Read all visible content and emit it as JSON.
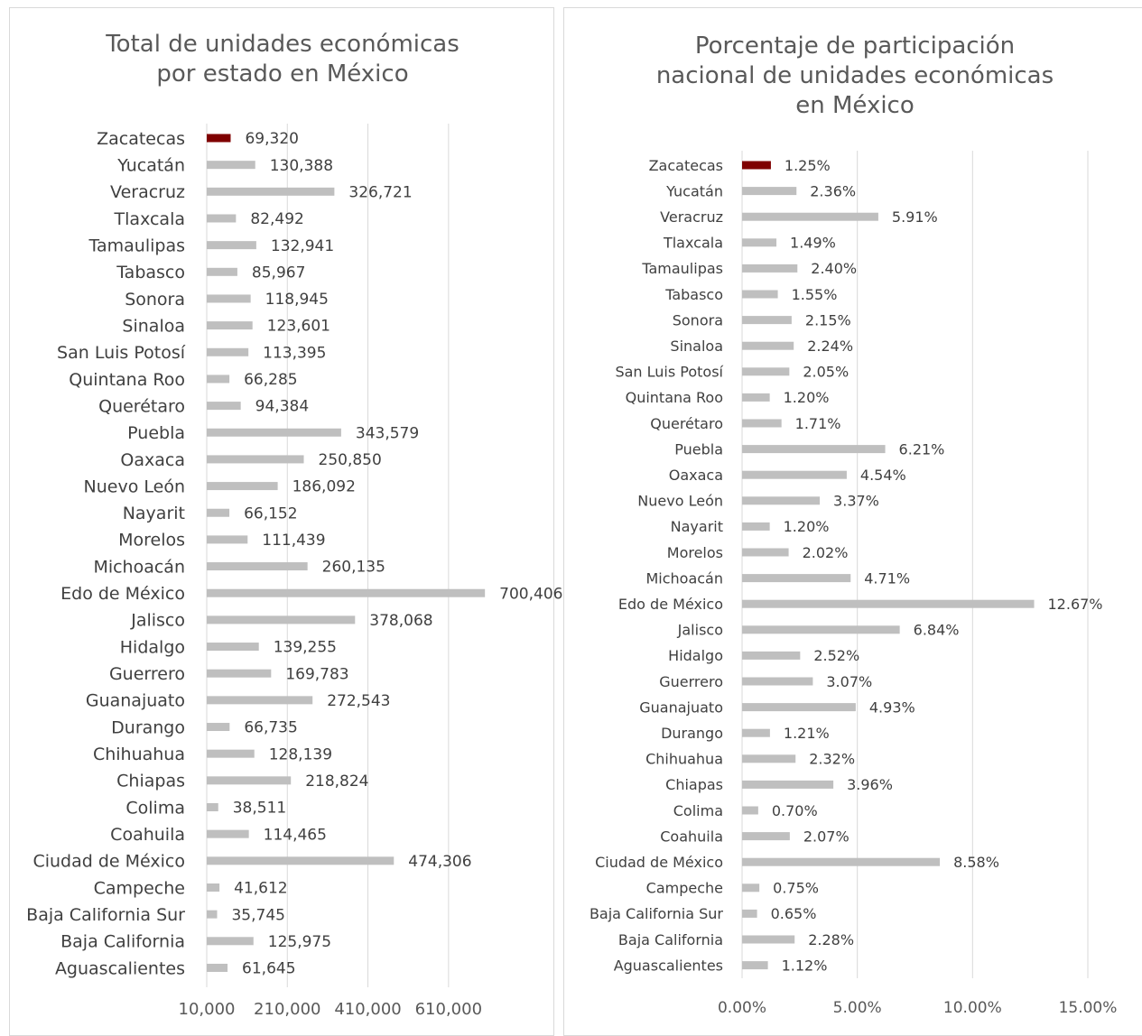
{
  "chart_data": [
    {
      "type": "bar",
      "orientation": "horizontal",
      "title": "Total de unidades económicas por estado en México",
      "title_lines": [
        "Total de unidades económicas",
        "por estado en México"
      ],
      "xlabel": "",
      "ylabel": "",
      "xlim": [
        10000,
        700000
      ],
      "x_ticks": [
        10000,
        210000,
        410000,
        610000
      ],
      "x_tick_labels": [
        "10,000",
        "210,000",
        "410,000",
        "610,000"
      ],
      "grid": true,
      "legend": "none",
      "colors": {
        "highlight": "#7f0000",
        "bar": "#bfbfbf",
        "grid": "#d9d9d9"
      },
      "highlight": "Zacatecas",
      "categories": [
        "Zacatecas",
        "Yucatán",
        "Veracruz",
        "Tlaxcala",
        "Tamaulipas",
        "Tabasco",
        "Sonora",
        "Sinaloa",
        "San Luis Potosí",
        "Quintana Roo",
        "Querétaro",
        "Puebla",
        "Oaxaca",
        "Nuevo León",
        "Nayarit",
        "Morelos",
        "Michoacán",
        "Edo de México",
        "Jalisco",
        "Hidalgo",
        "Guerrero",
        "Guanajuato",
        "Durango",
        "Chihuahua",
        "Chiapas",
        "Colima",
        "Coahuila",
        "Ciudad de México",
        "Campeche",
        "Baja California Sur",
        "Baja California",
        "Aguascalientes"
      ],
      "values": [
        69320,
        130388,
        326721,
        82492,
        132941,
        85967,
        118945,
        123601,
        113395,
        66285,
        94384,
        343579,
        250850,
        186092,
        66152,
        111439,
        260135,
        700406,
        378068,
        139255,
        169783,
        272543,
        66735,
        128139,
        218824,
        38511,
        114465,
        474306,
        41612,
        35745,
        125975,
        61645
      ],
      "data_labels": [
        "69,320",
        "130,388",
        "326,721",
        "82,492",
        "132,941",
        "85,967",
        "118,945",
        "123,601",
        "113,395",
        "66,285",
        "94,384",
        "343,579",
        "250,850",
        "186,092",
        "66,152",
        "111,439",
        "260,135",
        "700,406",
        "378,068",
        "139,255",
        "169,783",
        "272,543",
        "66,735",
        "128,139",
        "218,824",
        "38,511",
        "114,465",
        "474,306",
        "41,612",
        "35,745",
        "125,975",
        "61,645"
      ]
    },
    {
      "type": "bar",
      "orientation": "horizontal",
      "title": "Porcentaje de participación nacional de unidades económicas en México",
      "title_lines": [
        "Porcentaje de participación",
        "nacional de unidades económicas",
        "en México"
      ],
      "xlabel": "",
      "ylabel": "",
      "xlim": [
        0,
        15
      ],
      "x_ticks": [
        0,
        5,
        10,
        15
      ],
      "x_tick_labels": [
        "0.00%",
        "5.00%",
        "10.00%",
        "15.00%"
      ],
      "grid": true,
      "legend": "none",
      "colors": {
        "highlight": "#7f0000",
        "bar": "#bfbfbf",
        "grid": "#d9d9d9"
      },
      "highlight": "Zacatecas",
      "categories": [
        "Zacatecas",
        "Yucatán",
        "Veracruz",
        "Tlaxcala",
        "Tamaulipas",
        "Tabasco",
        "Sonora",
        "Sinaloa",
        "San Luis Potosí",
        "Quintana Roo",
        "Querétaro",
        "Puebla",
        "Oaxaca",
        "Nuevo León",
        "Nayarit",
        "Morelos",
        "Michoacán",
        "Edo de México",
        "Jalisco",
        "Hidalgo",
        "Guerrero",
        "Guanajuato",
        "Durango",
        "Chihuahua",
        "Chiapas",
        "Colima",
        "Coahuila",
        "Ciudad de México",
        "Campeche",
        "Baja California Sur",
        "Baja California",
        "Aguascalientes"
      ],
      "values": [
        1.25,
        2.36,
        5.91,
        1.49,
        2.4,
        1.55,
        2.15,
        2.24,
        2.05,
        1.2,
        1.71,
        6.21,
        4.54,
        3.37,
        1.2,
        2.02,
        4.71,
        12.67,
        6.84,
        2.52,
        3.07,
        4.93,
        1.21,
        2.32,
        3.96,
        0.7,
        2.07,
        8.58,
        0.75,
        0.65,
        2.28,
        1.12
      ],
      "data_labels": [
        "1.25%",
        "2.36%",
        "5.91%",
        "1.49%",
        "2.40%",
        "1.55%",
        "2.15%",
        "2.24%",
        "2.05%",
        "1.20%",
        "1.71%",
        "6.21%",
        "4.54%",
        "3.37%",
        "1.20%",
        "2.02%",
        "4.71%",
        "12.67%",
        "6.84%",
        "2.52%",
        "3.07%",
        "4.93%",
        "1.21%",
        "2.32%",
        "3.96%",
        "0.70%",
        "2.07%",
        "8.58%",
        "0.75%",
        "0.65%",
        "2.28%",
        "1.12%"
      ]
    }
  ]
}
